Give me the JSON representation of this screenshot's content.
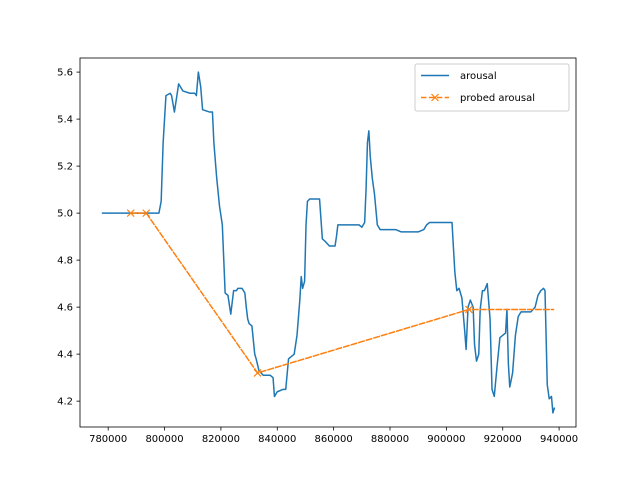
{
  "chart_data": {
    "type": "line",
    "title": "",
    "xlabel": "",
    "ylabel": "",
    "xlim": [
      770000,
      946000
    ],
    "ylim": [
      4.09,
      5.66
    ],
    "x_ticks": [
      780000,
      800000,
      820000,
      840000,
      860000,
      880000,
      900000,
      920000,
      940000
    ],
    "x_tick_labels": [
      "780000",
      "800000",
      "820000",
      "840000",
      "860000",
      "880000",
      "900000",
      "920000",
      "940000"
    ],
    "y_ticks": [
      4.2,
      4.4,
      4.6,
      4.8,
      5.0,
      5.2,
      5.4,
      5.6
    ],
    "y_tick_labels": [
      "4.2",
      "4.4",
      "4.6",
      "4.8",
      "5.0",
      "5.2",
      "5.4",
      "5.6"
    ],
    "grid": false,
    "legend_position": "top-right",
    "series": [
      {
        "name": "arousal",
        "color": "#1f77b4",
        "style": "solid",
        "x": [
          778000,
          790000,
          797000,
          798000,
          798800,
          799500,
          800500,
          802000,
          802500,
          803500,
          805000,
          806500,
          809000,
          810000,
          810700,
          811300,
          812000,
          812800,
          813500,
          816000,
          817000,
          817500,
          818500,
          819500,
          820500,
          821500,
          822500,
          823500,
          824500,
          825500,
          826000,
          827500,
          828500,
          829000,
          829500,
          830000,
          831000,
          832000,
          832500,
          833500,
          835000,
          837500,
          838500,
          839000,
          840000,
          842000,
          843000,
          844000,
          846000,
          847000,
          848000,
          848500,
          849000,
          849700,
          850200,
          850700,
          851500,
          852500,
          855000,
          856000,
          857000,
          858500,
          860500,
          861000,
          861500,
          863000,
          865000,
          867000,
          869000,
          870000,
          871000,
          871500,
          872000,
          872500,
          873000,
          873700,
          874500,
          875500,
          876500,
          878000,
          880000,
          882000,
          884000,
          887000,
          890000,
          892000,
          893000,
          894000,
          896000,
          898000,
          900000,
          902000,
          903000,
          903700,
          904500,
          905500,
          906500,
          907000,
          907700,
          908500,
          909500,
          910000,
          910700,
          911500,
          912000,
          912800,
          913500,
          914500,
          915500,
          916200,
          917000,
          918000,
          919000,
          920000,
          921000,
          921500,
          922000,
          922500,
          923500,
          924500,
          925500,
          926500,
          930000,
          931500,
          932500,
          933500,
          934500,
          935000,
          935300,
          935800,
          936500,
          937300,
          937800,
          938300
        ],
        "values": [
          5.0,
          5.0,
          5.0,
          5.0,
          5.05,
          5.3,
          5.5,
          5.51,
          5.5,
          5.43,
          5.55,
          5.52,
          5.51,
          5.51,
          5.51,
          5.5,
          5.6,
          5.54,
          5.44,
          5.43,
          5.43,
          5.3,
          5.15,
          5.03,
          4.95,
          4.66,
          4.65,
          4.57,
          4.67,
          4.67,
          4.68,
          4.68,
          4.66,
          4.6,
          4.55,
          4.53,
          4.52,
          4.4,
          4.38,
          4.33,
          4.31,
          4.31,
          4.3,
          4.22,
          4.24,
          4.25,
          4.25,
          4.38,
          4.4,
          4.48,
          4.63,
          4.73,
          4.68,
          4.71,
          4.95,
          5.05,
          5.06,
          5.06,
          5.06,
          4.89,
          4.88,
          4.86,
          4.86,
          4.9,
          4.95,
          4.95,
          4.95,
          4.95,
          4.95,
          4.94,
          4.96,
          5.1,
          5.3,
          5.35,
          5.24,
          5.15,
          5.08,
          4.95,
          4.93,
          4.93,
          4.93,
          4.93,
          4.92,
          4.92,
          4.92,
          4.93,
          4.95,
          4.96,
          4.96,
          4.96,
          4.96,
          4.96,
          4.75,
          4.67,
          4.68,
          4.64,
          4.5,
          4.42,
          4.6,
          4.63,
          4.6,
          4.44,
          4.37,
          4.4,
          4.59,
          4.67,
          4.67,
          4.7,
          4.55,
          4.25,
          4.22,
          4.35,
          4.47,
          4.48,
          4.49,
          4.59,
          4.36,
          4.26,
          4.32,
          4.48,
          4.56,
          4.58,
          4.58,
          4.6,
          4.65,
          4.67,
          4.68,
          4.67,
          4.52,
          4.27,
          4.21,
          4.22,
          4.15,
          4.17
        ]
      },
      {
        "name": "probed arousal",
        "color": "#ff7f0e",
        "style": "dashed",
        "marker": "x",
        "x": [
          788000,
          793500,
          833000,
          908000,
          938000
        ],
        "values": [
          5.0,
          5.0,
          4.32,
          4.59,
          4.59
        ],
        "marker_indices": [
          0,
          1,
          2,
          3
        ]
      }
    ]
  }
}
